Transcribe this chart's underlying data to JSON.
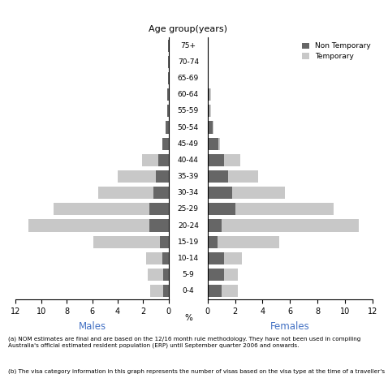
{
  "age_groups": [
    "75+",
    "70-74",
    "65-69",
    "60-64",
    "55-59",
    "50-54",
    "45-49",
    "40-44",
    "35-39",
    "30-34",
    "25-29",
    "20-24",
    "15-19",
    "10-14",
    "5-9",
    "0-4"
  ],
  "males_nontemp": [
    0.05,
    0.08,
    0.08,
    0.12,
    0.15,
    0.25,
    0.5,
    0.8,
    1.0,
    1.2,
    1.5,
    1.5,
    0.7,
    0.5,
    0.45,
    0.45
  ],
  "males_temp": [
    0.0,
    0.0,
    0.0,
    0.0,
    0.0,
    0.0,
    0.0,
    1.3,
    3.0,
    4.3,
    7.5,
    9.5,
    5.2,
    1.3,
    1.2,
    1.0
  ],
  "females_nontemp": [
    0.05,
    0.05,
    0.05,
    0.15,
    0.15,
    0.35,
    0.8,
    1.2,
    1.5,
    1.8,
    2.0,
    1.0,
    0.7,
    1.2,
    1.2,
    1.0
  ],
  "females_temp": [
    0.0,
    0.0,
    0.0,
    0.1,
    0.1,
    0.1,
    0.1,
    1.2,
    2.2,
    3.8,
    7.2,
    10.0,
    4.5,
    1.3,
    1.0,
    1.2
  ],
  "color_nontemp": "#666666",
  "color_temp": "#c8c8c8",
  "xlabel_males": "Males",
  "xlabel_females": "Females",
  "ylabel_center": "%",
  "title": "Age group(years)",
  "legend_nontemp": "Non Temporary",
  "legend_temp": "Temporary",
  "xlim": 12,
  "xticks": [
    0,
    2,
    4,
    6,
    8,
    10,
    12
  ],
  "footnote_a": "(a) NOM estimates are final and are based on the 12/16 month rule methodology. They have not been used in compiling Australia's official estimated resident population (ERP) until September quarter 2006 and onwards.",
  "footnote_b": "(b) The visa category information in this graph represents the number of visas based on the visa type at the time of a traveller's specific movement. It is this specific movement that has been used to calculate NOM."
}
